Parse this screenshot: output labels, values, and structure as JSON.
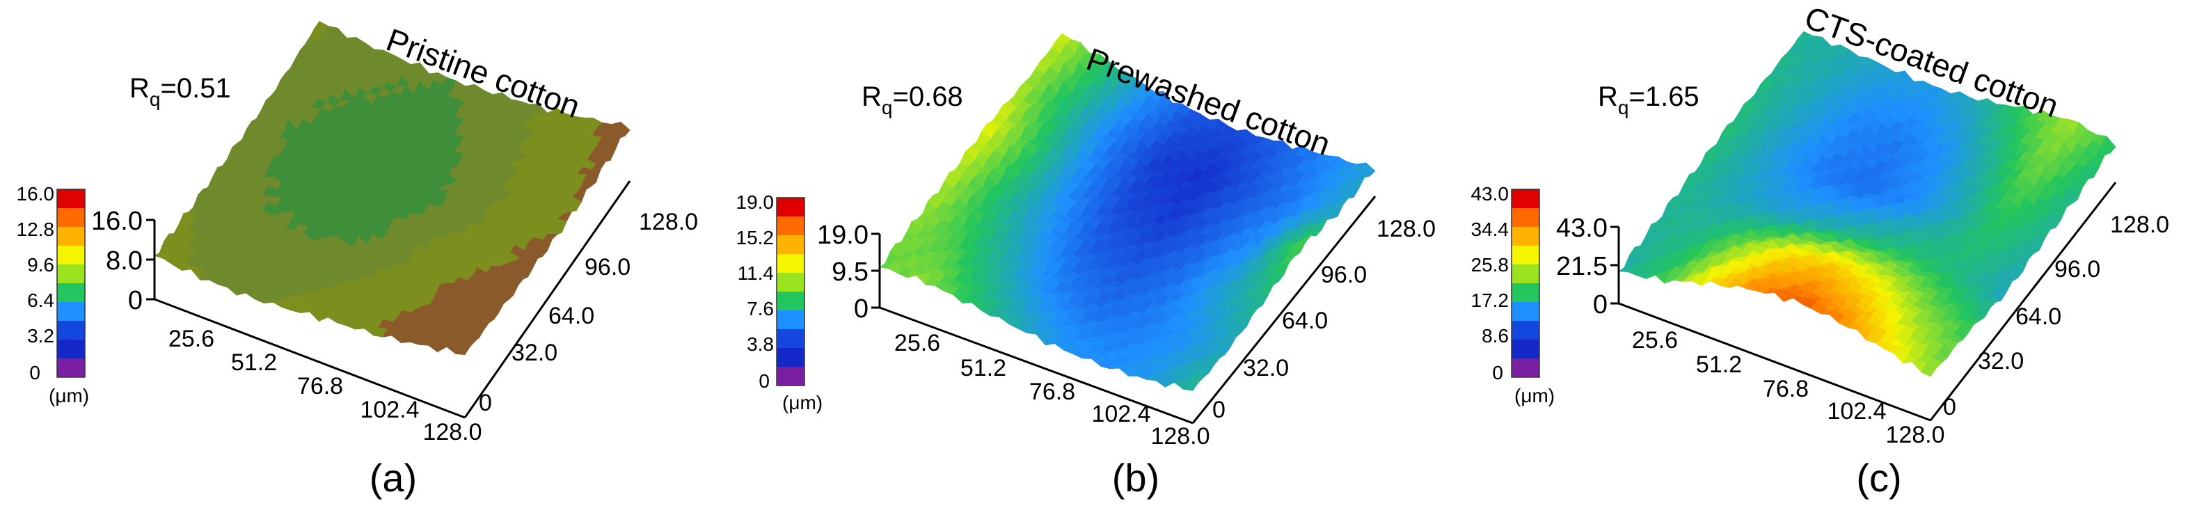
{
  "figure_panels": [
    {
      "label": "(a)",
      "title": "Pristine cotton",
      "rq": {
        "symbol": "R",
        "subscript": "q",
        "value": "=0.51"
      },
      "colorbar": {
        "ticks": [
          "16.0",
          "12.8",
          "9.6",
          "6.4",
          "3.2",
          "0"
        ],
        "unit": "(μm)"
      },
      "z_ticks": [
        "16.0",
        "8.0",
        "0"
      ],
      "x_ticks": [
        "25.6",
        "51.2",
        "76.8",
        "102.4",
        "128.0"
      ],
      "y_ticks": [
        "0",
        "32.0",
        "64.0",
        "96.0",
        "128.0"
      ]
    },
    {
      "label": "(b)",
      "title": "Prewashed  cotton",
      "rq": {
        "symbol": "R",
        "subscript": "q",
        "value": "=0.68"
      },
      "colorbar": {
        "ticks": [
          "19.0",
          "15.2",
          "11.4",
          "7.6",
          "3.8",
          "0"
        ],
        "unit": "(μm)"
      },
      "z_ticks": [
        "19.0",
        "9.5",
        "0"
      ],
      "x_ticks": [
        "25.6",
        "51.2",
        "76.8",
        "102.4",
        "128.0"
      ],
      "y_ticks": [
        "0",
        "32.0",
        "64.0",
        "96.0",
        "128.0"
      ]
    },
    {
      "label": "(c)",
      "title": "CTS-coated cotton",
      "rq": {
        "symbol": "R",
        "subscript": "q",
        "value": "=1.65"
      },
      "colorbar": {
        "ticks": [
          "43.0",
          "34.4",
          "25.8",
          "17.2",
          "8.6",
          "0"
        ],
        "unit": "(μm)"
      },
      "z_ticks": [
        "43.0",
        "21.5",
        "0"
      ],
      "x_ticks": [
        "25.6",
        "51.2",
        "76.8",
        "102.4",
        "128.0"
      ],
      "y_ticks": [
        "0",
        "32.0",
        "64.0",
        "96.0",
        "128.0"
      ]
    }
  ],
  "chart_data": [
    {
      "type": "heatmap",
      "surface": "3d",
      "title": "Pristine cotton",
      "rq": 0.51,
      "zlim": [
        0,
        16.0
      ],
      "xlim": [
        0,
        128.0
      ],
      "ylim": [
        0,
        128.0
      ],
      "colorscale": [
        "#7b1fa2",
        "#1428c8",
        "#1e90ff",
        "#22c55e",
        "#f5f500",
        "#ff8c00",
        "#e00000"
      ],
      "dominant_color": "#7c8f1e",
      "relative_heights": [
        [
          0.55,
          0.5,
          0.48,
          0.52,
          0.58,
          0.62,
          0.7,
          0.8
        ],
        [
          0.5,
          0.45,
          0.44,
          0.47,
          0.5,
          0.58,
          0.66,
          0.72
        ],
        [
          0.48,
          0.42,
          0.4,
          0.38,
          0.44,
          0.52,
          0.6,
          0.66
        ],
        [
          0.46,
          0.4,
          0.38,
          0.36,
          0.4,
          0.46,
          0.55,
          0.62
        ],
        [
          0.47,
          0.43,
          0.4,
          0.38,
          0.42,
          0.48,
          0.56,
          0.64
        ],
        [
          0.52,
          0.46,
          0.44,
          0.42,
          0.46,
          0.5,
          0.58,
          0.68
        ]
      ]
    },
    {
      "type": "heatmap",
      "surface": "3d",
      "title": "Prewashed  cotton",
      "rq": 0.68,
      "zlim": [
        0,
        19.0
      ],
      "xlim": [
        0,
        128.0
      ],
      "ylim": [
        0,
        128.0
      ],
      "colorscale": [
        "#7b1fa2",
        "#1428c8",
        "#1e90ff",
        "#22c55e",
        "#f5f500",
        "#ff8c00",
        "#e00000"
      ],
      "relative_heights": [
        [
          0.55,
          0.58,
          0.5,
          0.42,
          0.35,
          0.33,
          0.36,
          0.45
        ],
        [
          0.58,
          0.52,
          0.42,
          0.32,
          0.28,
          0.3,
          0.34,
          0.4
        ],
        [
          0.62,
          0.48,
          0.36,
          0.26,
          0.24,
          0.28,
          0.38,
          0.46
        ],
        [
          0.66,
          0.5,
          0.32,
          0.22,
          0.2,
          0.26,
          0.34,
          0.55
        ],
        [
          0.6,
          0.46,
          0.3,
          0.2,
          0.18,
          0.24,
          0.3,
          0.4
        ],
        [
          0.64,
          0.5,
          0.34,
          0.24,
          0.22,
          0.26,
          0.32,
          0.38
        ]
      ]
    },
    {
      "type": "heatmap",
      "surface": "3d",
      "title": "CTS-coated cotton",
      "rq": 1.65,
      "zlim": [
        0,
        43.0
      ],
      "xlim": [
        0,
        128.0
      ],
      "ylim": [
        0,
        128.0
      ],
      "colorscale": [
        "#7b1fa2",
        "#1428c8",
        "#1e90ff",
        "#22c55e",
        "#f5f500",
        "#ff8c00",
        "#e00000"
      ],
      "relative_heights": [
        [
          0.42,
          0.52,
          0.7,
          0.84,
          0.9,
          0.84,
          0.7,
          0.58
        ],
        [
          0.44,
          0.46,
          0.58,
          0.7,
          0.74,
          0.68,
          0.58,
          0.52
        ],
        [
          0.46,
          0.4,
          0.38,
          0.42,
          0.46,
          0.48,
          0.46,
          0.4
        ],
        [
          0.48,
          0.38,
          0.3,
          0.28,
          0.32,
          0.4,
          0.5,
          0.44
        ],
        [
          0.46,
          0.4,
          0.32,
          0.3,
          0.34,
          0.44,
          0.56,
          0.46
        ],
        [
          0.44,
          0.42,
          0.38,
          0.36,
          0.42,
          0.52,
          0.6,
          0.5
        ]
      ]
    }
  ]
}
